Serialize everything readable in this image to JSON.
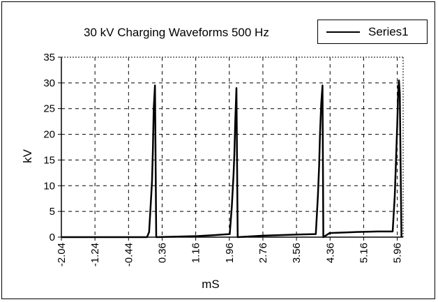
{
  "chart_data": {
    "type": "line",
    "title": "30 kV Charging Waveforms 500 Hz",
    "xlabel": "mS",
    "ylabel": "kV",
    "ylim": [
      0,
      35
    ],
    "yticks": [
      "0",
      "5",
      "10",
      "15",
      "20",
      "25",
      "30",
      "35"
    ],
    "xlim": [
      -2.04,
      6.1
    ],
    "xticks": [
      "-2.04",
      "-1.24",
      "-0.44",
      "0.36",
      "1.16",
      "1.96",
      "2.76",
      "3.56",
      "4.36",
      "5.16",
      "5.96"
    ],
    "grid": true,
    "legend_position": "top-right",
    "series": [
      {
        "name": "Series1",
        "x": [
          -2.04,
          -0.2,
          0.0,
          0.05,
          0.1,
          0.12,
          0.14,
          0.16,
          0.19,
          0.22,
          1.2,
          1.6,
          1.97,
          2.02,
          2.06,
          2.08,
          2.1,
          2.13,
          2.16,
          2.8,
          3.6,
          4.02,
          4.07,
          4.1,
          4.12,
          4.15,
          4.18,
          4.2,
          4.35,
          5.0,
          5.5,
          5.85,
          5.9,
          5.93,
          5.96,
          5.98,
          6.0,
          6.02,
          6.06
        ],
        "y": [
          0,
          0,
          0,
          1,
          8,
          11,
          17,
          25,
          29.5,
          0,
          0.2,
          0.4,
          0.6,
          6,
          12,
          16,
          22,
          29,
          0,
          0.3,
          0.5,
          0.6,
          8,
          14,
          20,
          26,
          29.5,
          0,
          0.8,
          1.0,
          1.1,
          1.1,
          8,
          15,
          22,
          28,
          30.5,
          28,
          0
        ]
      }
    ]
  },
  "legend": {
    "label": "Series1"
  }
}
